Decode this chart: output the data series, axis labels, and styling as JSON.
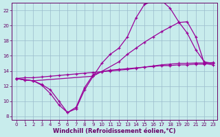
{
  "xlabel": "Windchill (Refroidissement éolien,°C)",
  "bg_color": "#c8ecec",
  "line_color": "#990099",
  "grid_color": "#99bbcc",
  "axis_color": "#660066",
  "text_color": "#660066",
  "xlim": [
    -0.5,
    23.5
  ],
  "ylim": [
    7.5,
    23.0
  ],
  "xticks": [
    0,
    1,
    2,
    3,
    4,
    5,
    6,
    7,
    8,
    9,
    10,
    11,
    12,
    13,
    14,
    15,
    16,
    17,
    18,
    19,
    20,
    21,
    22,
    23
  ],
  "yticks": [
    8,
    10,
    12,
    14,
    16,
    18,
    20,
    22
  ],
  "line1_x": [
    0,
    1,
    2,
    3,
    4,
    5,
    6,
    7,
    8,
    9,
    10,
    11,
    12,
    13,
    14,
    15,
    16,
    17,
    18,
    19,
    20,
    21,
    22,
    23
  ],
  "line1_y": [
    13.0,
    12.8,
    12.7,
    12.1,
    11.0,
    9.5,
    8.5,
    9.0,
    11.5,
    13.3,
    15.0,
    16.2,
    17.0,
    18.5,
    21.0,
    22.8,
    23.2,
    23.3,
    22.3,
    20.5,
    19.0,
    16.8,
    15.2,
    15.0
  ],
  "line2_x": [
    0,
    2,
    9,
    12,
    13,
    14,
    15,
    16,
    17,
    18,
    19,
    20,
    21,
    22,
    23
  ],
  "line2_y": [
    13.0,
    12.7,
    13.3,
    15.2,
    16.2,
    17.0,
    17.8,
    18.5,
    19.2,
    19.8,
    20.4,
    20.5,
    18.5,
    15.0,
    14.8
  ],
  "line3_x": [
    0,
    1,
    2,
    3,
    4,
    5,
    6,
    7,
    8,
    9,
    10,
    11,
    12,
    13,
    14,
    15,
    16,
    17,
    18,
    19,
    20,
    21,
    22,
    23
  ],
  "line3_y": [
    13.0,
    13.1,
    13.1,
    13.2,
    13.3,
    13.4,
    13.5,
    13.6,
    13.7,
    13.8,
    13.9,
    14.0,
    14.1,
    14.2,
    14.35,
    14.5,
    14.65,
    14.8,
    14.9,
    15.0,
    15.0,
    15.05,
    15.05,
    15.1
  ],
  "line4_x": [
    0,
    1,
    2,
    3,
    4,
    5,
    6,
    7,
    8,
    9,
    10,
    11,
    12,
    13,
    14,
    15,
    16,
    17,
    18,
    19,
    20,
    21,
    22,
    23
  ],
  "line4_y": [
    13.0,
    12.8,
    12.7,
    12.2,
    11.5,
    10.0,
    8.5,
    9.2,
    11.8,
    13.5,
    13.9,
    14.1,
    14.2,
    14.3,
    14.4,
    14.5,
    14.6,
    14.7,
    14.7,
    14.8,
    14.8,
    14.9,
    14.9,
    15.0
  ],
  "marker": "+",
  "markersize": 3,
  "markeredgewidth": 0.9,
  "linewidth": 0.9,
  "tick_fontsize": 5.0,
  "xlabel_fontsize": 6.0,
  "spine_linewidth": 0.7
}
